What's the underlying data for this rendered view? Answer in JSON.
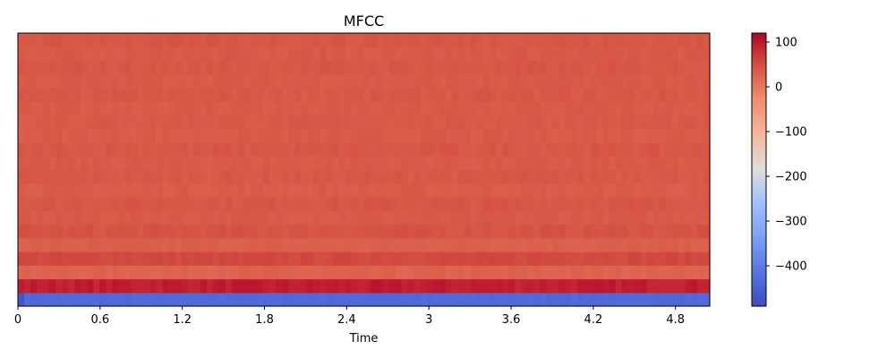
{
  "chart_data": {
    "type": "heatmap",
    "title": "MFCC",
    "xlabel": "Time",
    "ylabel": "",
    "xlim": [
      0,
      5.05
    ],
    "x_ticks": [
      0,
      0.6,
      1.2,
      1.8,
      2.4,
      3.0,
      3.6,
      4.2,
      4.8
    ],
    "x_tick_labels": [
      "0",
      "0.6",
      "1.2",
      "1.8",
      "2.4",
      "3",
      "3.6",
      "4.2",
      "4.8"
    ],
    "n_coefficients": 20,
    "colormap": "coolwarm",
    "colorbar": {
      "vmin": -490,
      "vmax": 120,
      "ticks": [
        100,
        0,
        -100,
        -200,
        -300,
        -400
      ],
      "tick_labels": [
        "100",
        "0",
        "−100",
        "−200",
        "−300",
        "−400"
      ]
    },
    "row_levels_bottom_to_top": [
      -435,
      95,
      25,
      55,
      30,
      45,
      38,
      42,
      35,
      40,
      37,
      41,
      36,
      39,
      37,
      40,
      38,
      41,
      39,
      42
    ],
    "grid": false,
    "legend": "none"
  }
}
